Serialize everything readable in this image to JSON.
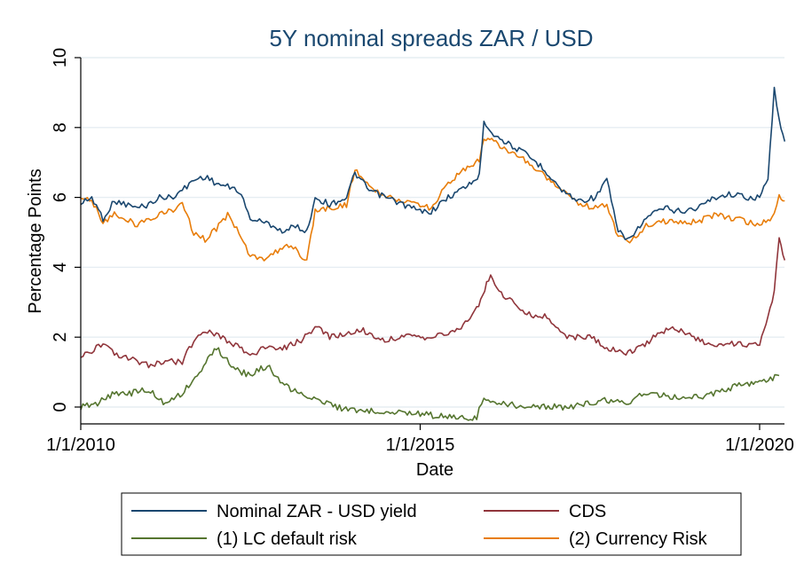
{
  "chart_data": {
    "type": "line",
    "title": "5Y nominal spreads ZAR / USD",
    "xlabel": "Date",
    "ylabel": "Percentage Points",
    "xlim": [
      "2010-01-01",
      "2020-05-31"
    ],
    "ylim": [
      -0.5,
      10
    ],
    "x_ticks": [
      "1/1/2010",
      "1/1/2015",
      "1/1/2020"
    ],
    "y_ticks": [
      0,
      2,
      4,
      6,
      8,
      10
    ],
    "grid": "horizontal",
    "legend_placement": "bottom",
    "series": [
      {
        "name": "Nominal ZAR - USD yield",
        "color": "#1a476f",
        "points": [
          [
            "2010-01-01",
            5.8
          ],
          [
            "2010-03-01",
            6.0
          ],
          [
            "2010-05-01",
            5.4
          ],
          [
            "2010-07-01",
            5.9
          ],
          [
            "2010-09-01",
            5.8
          ],
          [
            "2010-11-01",
            5.7
          ],
          [
            "2011-01-01",
            5.8
          ],
          [
            "2011-03-01",
            6.0
          ],
          [
            "2011-05-01",
            6.0
          ],
          [
            "2011-07-01",
            6.2
          ],
          [
            "2011-09-01",
            6.5
          ],
          [
            "2011-11-01",
            6.6
          ],
          [
            "2012-01-01",
            6.4
          ],
          [
            "2012-03-01",
            6.3
          ],
          [
            "2012-05-01",
            6.2
          ],
          [
            "2012-07-01",
            5.4
          ],
          [
            "2012-09-01",
            5.3
          ],
          [
            "2012-11-01",
            5.2
          ],
          [
            "2013-01-01",
            5.0
          ],
          [
            "2013-03-01",
            5.2
          ],
          [
            "2013-05-01",
            5.0
          ],
          [
            "2013-06-15",
            6.0
          ],
          [
            "2013-09-01",
            5.8
          ],
          [
            "2013-12-01",
            6.0
          ],
          [
            "2014-01-15",
            6.7
          ],
          [
            "2014-04-01",
            6.2
          ],
          [
            "2014-07-01",
            6.0
          ],
          [
            "2014-10-01",
            5.8
          ],
          [
            "2015-01-01",
            5.6
          ],
          [
            "2015-03-01",
            5.6
          ],
          [
            "2015-06-01",
            6.0
          ],
          [
            "2015-09-01",
            6.3
          ],
          [
            "2015-11-15",
            6.6
          ],
          [
            "2015-12-10",
            8.2
          ],
          [
            "2016-02-01",
            7.8
          ],
          [
            "2016-05-01",
            7.5
          ],
          [
            "2016-08-01",
            7.2
          ],
          [
            "2016-11-01",
            6.8
          ],
          [
            "2017-02-01",
            6.2
          ],
          [
            "2017-05-01",
            5.9
          ],
          [
            "2017-08-01",
            6.0
          ],
          [
            "2017-10-01",
            6.5
          ],
          [
            "2017-12-01",
            5.0
          ],
          [
            "2018-02-01",
            4.8
          ],
          [
            "2018-05-01",
            5.4
          ],
          [
            "2018-08-01",
            5.7
          ],
          [
            "2018-11-01",
            5.6
          ],
          [
            "2019-02-01",
            5.7
          ],
          [
            "2019-05-01",
            6.0
          ],
          [
            "2019-08-01",
            6.1
          ],
          [
            "2019-11-01",
            6.0
          ],
          [
            "2020-01-01",
            6.0
          ],
          [
            "2020-02-15",
            6.5
          ],
          [
            "2020-03-20",
            9.2
          ],
          [
            "2020-04-15",
            8.2
          ],
          [
            "2020-05-15",
            7.6
          ]
        ]
      },
      {
        "name": "CDS",
        "color": "#90353b",
        "points": [
          [
            "2010-01-01",
            1.4
          ],
          [
            "2010-03-01",
            1.6
          ],
          [
            "2010-05-01",
            1.8
          ],
          [
            "2010-07-01",
            1.5
          ],
          [
            "2010-09-01",
            1.4
          ],
          [
            "2010-11-01",
            1.3
          ],
          [
            "2011-01-01",
            1.2
          ],
          [
            "2011-04-01",
            1.3
          ],
          [
            "2011-07-01",
            1.3
          ],
          [
            "2011-09-01",
            1.9
          ],
          [
            "2011-11-01",
            2.2
          ],
          [
            "2012-01-01",
            2.1
          ],
          [
            "2012-04-01",
            1.8
          ],
          [
            "2012-07-01",
            1.5
          ],
          [
            "2012-10-01",
            1.7
          ],
          [
            "2013-01-01",
            1.7
          ],
          [
            "2013-04-01",
            1.9
          ],
          [
            "2013-06-15",
            2.3
          ],
          [
            "2013-09-01",
            2.0
          ],
          [
            "2013-12-01",
            2.1
          ],
          [
            "2014-03-01",
            2.2
          ],
          [
            "2014-06-01",
            1.9
          ],
          [
            "2014-09-01",
            2.0
          ],
          [
            "2014-12-01",
            2.0
          ],
          [
            "2015-03-01",
            2.0
          ],
          [
            "2015-06-01",
            2.1
          ],
          [
            "2015-09-01",
            2.4
          ],
          [
            "2015-11-01",
            2.8
          ],
          [
            "2016-01-15",
            3.8
          ],
          [
            "2016-03-01",
            3.3
          ],
          [
            "2016-06-01",
            2.9
          ],
          [
            "2016-09-01",
            2.6
          ],
          [
            "2016-11-01",
            2.6
          ],
          [
            "2017-03-01",
            2.0
          ],
          [
            "2017-07-01",
            2.0
          ],
          [
            "2017-10-01",
            1.7
          ],
          [
            "2018-01-01",
            1.5
          ],
          [
            "2018-04-01",
            1.7
          ],
          [
            "2018-07-01",
            2.1
          ],
          [
            "2018-10-01",
            2.3
          ],
          [
            "2019-01-01",
            2.0
          ],
          [
            "2019-04-01",
            1.8
          ],
          [
            "2019-07-01",
            1.8
          ],
          [
            "2019-10-01",
            1.8
          ],
          [
            "2020-01-01",
            1.8
          ],
          [
            "2020-03-20",
            3.3
          ],
          [
            "2020-04-15",
            4.9
          ],
          [
            "2020-05-15",
            4.2
          ]
        ]
      },
      {
        "name": "(1) LC default risk",
        "color": "#55752f",
        "points": [
          [
            "2010-01-01",
            0.0
          ],
          [
            "2010-04-01",
            0.1
          ],
          [
            "2010-07-01",
            0.4
          ],
          [
            "2010-10-01",
            0.4
          ],
          [
            "2011-01-01",
            0.5
          ],
          [
            "2011-04-01",
            0.1
          ],
          [
            "2011-07-01",
            0.4
          ],
          [
            "2011-10-01",
            1.0
          ],
          [
            "2012-01-01",
            1.7
          ],
          [
            "2012-04-01",
            1.1
          ],
          [
            "2012-07-01",
            0.9
          ],
          [
            "2012-10-01",
            1.2
          ],
          [
            "2013-01-01",
            0.6
          ],
          [
            "2013-04-01",
            0.4
          ],
          [
            "2013-07-01",
            0.2
          ],
          [
            "2013-10-01",
            0.0
          ],
          [
            "2014-01-01",
            -0.1
          ],
          [
            "2014-07-01",
            -0.1
          ],
          [
            "2015-01-01",
            -0.2
          ],
          [
            "2015-07-01",
            -0.3
          ],
          [
            "2015-11-01",
            -0.3
          ],
          [
            "2015-12-10",
            0.3
          ],
          [
            "2016-03-01",
            0.1
          ],
          [
            "2016-09-01",
            0.0
          ],
          [
            "2017-03-01",
            0.0
          ],
          [
            "2017-07-01",
            0.1
          ],
          [
            "2017-10-01",
            0.2
          ],
          [
            "2018-01-01",
            0.1
          ],
          [
            "2018-05-01",
            0.4
          ],
          [
            "2018-10-01",
            0.3
          ],
          [
            "2019-03-01",
            0.3
          ],
          [
            "2019-09-01",
            0.6
          ],
          [
            "2020-01-01",
            0.7
          ],
          [
            "2020-04-15",
            0.9
          ]
        ]
      },
      {
        "name": "(2) Currency Risk",
        "color": "#e87d0a",
        "points": [
          [
            "2010-01-01",
            6.0
          ],
          [
            "2010-03-01",
            5.9
          ],
          [
            "2010-05-01",
            5.3
          ],
          [
            "2010-07-01",
            5.5
          ],
          [
            "2010-09-01",
            5.4
          ],
          [
            "2010-11-01",
            5.2
          ],
          [
            "2011-01-01",
            5.4
          ],
          [
            "2011-03-01",
            5.5
          ],
          [
            "2011-05-01",
            5.6
          ],
          [
            "2011-07-01",
            5.8
          ],
          [
            "2011-09-01",
            5.0
          ],
          [
            "2011-11-01",
            4.8
          ],
          [
            "2012-01-01",
            5.1
          ],
          [
            "2012-03-01",
            5.5
          ],
          [
            "2012-05-01",
            5.0
          ],
          [
            "2012-07-01",
            4.3
          ],
          [
            "2012-09-01",
            4.2
          ],
          [
            "2012-11-01",
            4.4
          ],
          [
            "2013-01-01",
            4.6
          ],
          [
            "2013-03-01",
            4.5
          ],
          [
            "2013-05-01",
            4.2
          ],
          [
            "2013-06-15",
            5.6
          ],
          [
            "2013-09-01",
            5.7
          ],
          [
            "2013-12-01",
            5.8
          ],
          [
            "2014-01-15",
            6.8
          ],
          [
            "2014-04-01",
            6.3
          ],
          [
            "2014-07-01",
            6.0
          ],
          [
            "2014-10-01",
            5.9
          ],
          [
            "2015-01-01",
            5.8
          ],
          [
            "2015-03-01",
            5.7
          ],
          [
            "2015-06-01",
            6.4
          ],
          [
            "2015-09-01",
            6.8
          ],
          [
            "2015-11-15",
            7.1
          ],
          [
            "2015-12-10",
            7.7
          ],
          [
            "2016-02-01",
            7.6
          ],
          [
            "2016-05-01",
            7.3
          ],
          [
            "2016-08-01",
            7.0
          ],
          [
            "2016-11-01",
            6.6
          ],
          [
            "2017-02-01",
            6.2
          ],
          [
            "2017-05-01",
            5.8
          ],
          [
            "2017-08-01",
            5.7
          ],
          [
            "2017-10-01",
            5.8
          ],
          [
            "2017-12-01",
            4.9
          ],
          [
            "2018-02-01",
            4.7
          ],
          [
            "2018-05-01",
            5.2
          ],
          [
            "2018-08-01",
            5.3
          ],
          [
            "2018-11-01",
            5.3
          ],
          [
            "2019-02-01",
            5.3
          ],
          [
            "2019-05-01",
            5.5
          ],
          [
            "2019-08-01",
            5.4
          ],
          [
            "2019-11-01",
            5.3
          ],
          [
            "2020-01-01",
            5.2
          ],
          [
            "2020-03-20",
            5.5
          ],
          [
            "2020-04-15",
            6.0
          ],
          [
            "2020-05-15",
            5.9
          ]
        ]
      }
    ]
  }
}
